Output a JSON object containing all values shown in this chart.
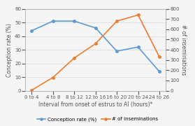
{
  "categories": [
    "0 to 4",
    "4 to 8",
    "8 to 12",
    "12 to 16",
    "16 to 20",
    "20 to 24",
    "24 to 26"
  ],
  "conception_rate": [
    44,
    51,
    51,
    46,
    29,
    32,
    14
  ],
  "num_inseminations": [
    5,
    130,
    320,
    460,
    680,
    740,
    330
  ],
  "line1_color": "#5B9BD5",
  "line2_color": "#ED7D31",
  "marker": "o",
  "xlabel": "Interval from onset of estrus to AI (hours)*",
  "ylabel_left": "Conception rate (%)",
  "ylabel_right": "# of inseminations",
  "ylim_left": [
    0,
    60
  ],
  "ylim_right": [
    0,
    800
  ],
  "yticks_left": [
    0,
    10,
    20,
    30,
    40,
    50,
    60
  ],
  "yticks_right": [
    0,
    100,
    200,
    300,
    400,
    500,
    600,
    700,
    800
  ],
  "legend_labels": [
    "Conception rate (%)",
    "# of inseminations"
  ],
  "background_color": "#f5f5f5",
  "plot_bg_color": "#f5f5f5",
  "grid_color": "#d9d9d9",
  "axis_color": "#b0b0b0",
  "text_color": "#555555",
  "label_fontsize": 5.5,
  "tick_fontsize": 5.0,
  "legend_fontsize": 5.0,
  "linewidth": 1.2,
  "markersize": 2.5
}
